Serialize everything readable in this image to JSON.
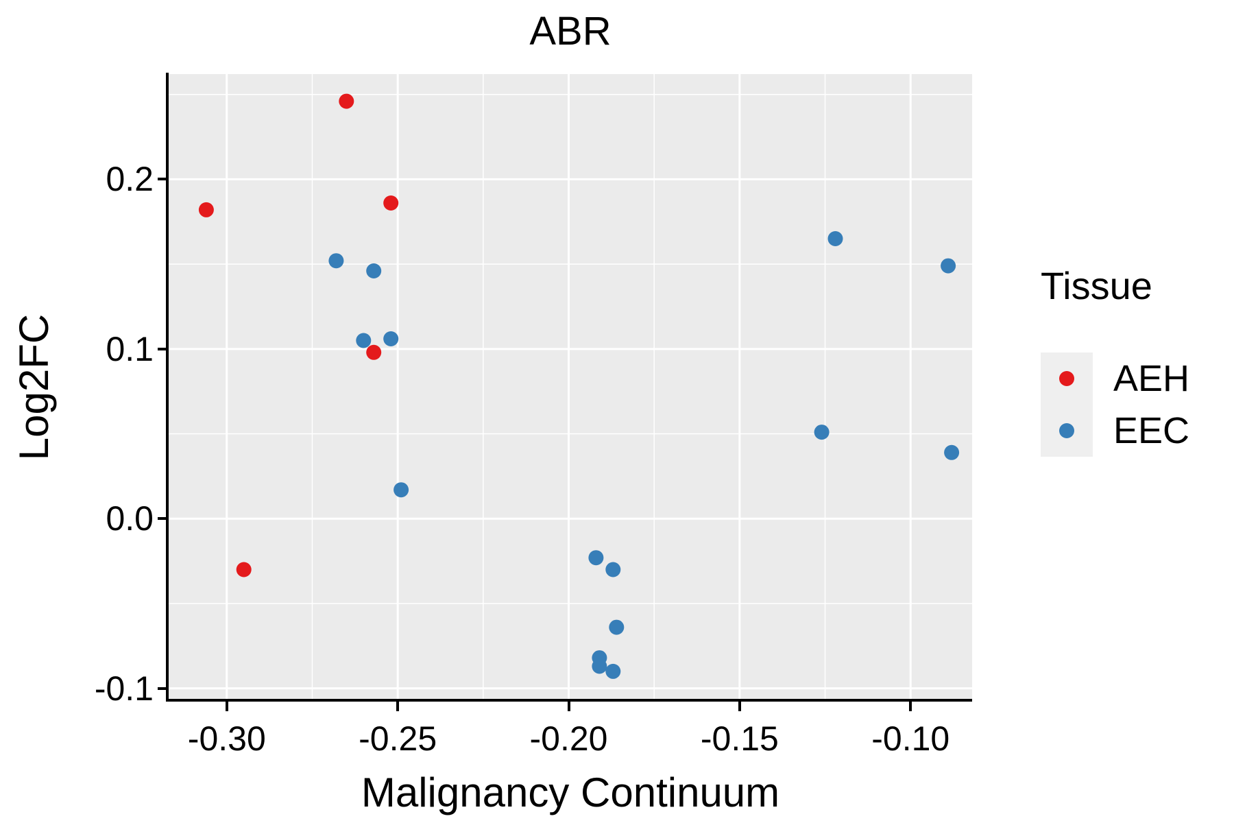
{
  "title": "ABR",
  "axes": {
    "x_label": "Malignancy Continuum",
    "y_label": "Log2FC"
  },
  "legend": {
    "title": "Tissue",
    "entries": [
      {
        "label": "AEH",
        "color": "#E41A1C"
      },
      {
        "label": "EEC",
        "color": "#377EB8"
      }
    ]
  },
  "colors": {
    "aeh": "#E41A1C",
    "eec": "#377EB8",
    "panel_background": "#EBEBEB",
    "grid": "#FFFFFF",
    "axis": "#000000"
  },
  "chart_data": {
    "type": "scatter",
    "title": "ABR",
    "xlabel": "Malignancy Continuum",
    "ylabel": "Log2FC",
    "xlim": [
      -0.317,
      -0.082
    ],
    "ylim": [
      -0.107,
      0.262
    ],
    "grid": true,
    "legend_position": "right",
    "x_ticks": [
      {
        "value": -0.3,
        "label": "-0.30"
      },
      {
        "value": -0.25,
        "label": "-0.25"
      },
      {
        "value": -0.2,
        "label": "-0.20"
      },
      {
        "value": -0.15,
        "label": "-0.15"
      },
      {
        "value": -0.1,
        "label": "-0.10"
      }
    ],
    "y_ticks": [
      {
        "value": 0.2,
        "label": "0.2"
      },
      {
        "value": 0.1,
        "label": "0.1"
      },
      {
        "value": 0.0,
        "label": "0.0"
      },
      {
        "value": -0.1,
        "label": "-0.1"
      }
    ],
    "x_minor_ticks": [
      -0.275,
      -0.225,
      -0.175,
      -0.125
    ],
    "y_minor_ticks": [
      0.25,
      0.15,
      0.05,
      -0.05
    ],
    "series": [
      {
        "name": "AEH",
        "color": "#E41A1C",
        "points": [
          [
            -0.306,
            0.182
          ],
          [
            -0.265,
            0.246
          ],
          [
            -0.252,
            0.186
          ],
          [
            -0.257,
            0.098
          ],
          [
            -0.295,
            -0.03
          ]
        ]
      },
      {
        "name": "EEC",
        "color": "#377EB8",
        "points": [
          [
            -0.268,
            0.152
          ],
          [
            -0.257,
            0.146
          ],
          [
            -0.26,
            0.105
          ],
          [
            -0.252,
            0.106
          ],
          [
            -0.249,
            0.017
          ],
          [
            -0.192,
            -0.023
          ],
          [
            -0.187,
            -0.03
          ],
          [
            -0.186,
            -0.064
          ],
          [
            -0.191,
            -0.082
          ],
          [
            -0.191,
            -0.087
          ],
          [
            -0.187,
            -0.09
          ],
          [
            -0.122,
            0.165
          ],
          [
            -0.089,
            0.149
          ],
          [
            -0.126,
            0.051
          ],
          [
            -0.088,
            0.039
          ]
        ]
      }
    ],
    "point_radius_px": 11
  }
}
